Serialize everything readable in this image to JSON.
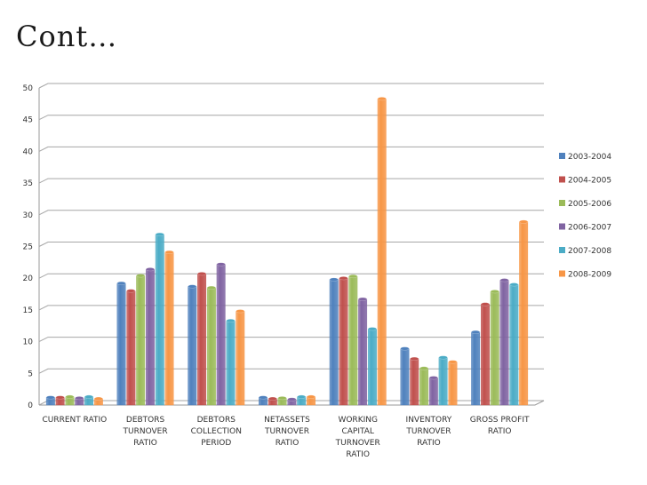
{
  "slide": {
    "title": "Cont…"
  },
  "chart_data": {
    "type": "bar",
    "title": "",
    "xlabel": "",
    "ylabel": "",
    "ylim": [
      0,
      50
    ],
    "yticks": [
      0,
      5,
      10,
      15,
      20,
      25,
      30,
      35,
      40,
      45,
      50
    ],
    "grid": true,
    "legend": "right",
    "categories": [
      [
        "CURRENT RATIO"
      ],
      [
        "DEBTORS",
        "TURNOVER",
        "RATIO"
      ],
      [
        "DEBTORS",
        "COLLECTION",
        "PERIOD"
      ],
      [
        "NETASSETS",
        "TURNOVER",
        "RATIO"
      ],
      [
        "WORKING",
        "CAPITAL",
        "TURNOVER",
        "RATIO"
      ],
      [
        "INVENTORY",
        "TURNOVER",
        "RATIO"
      ],
      [
        "GROSS PROFIT",
        "RATIO"
      ]
    ],
    "series": [
      {
        "name": "2003-2004",
        "color": "#4f81bd",
        "values": [
          1.2,
          19.2,
          18.7,
          1.2,
          19.8,
          8.9,
          11.5
        ]
      },
      {
        "name": "2004-2005",
        "color": "#c0504d",
        "values": [
          1.2,
          18.0,
          20.7,
          1.0,
          20.0,
          7.3,
          15.9
        ]
      },
      {
        "name": "2005-2006",
        "color": "#9bbb59",
        "values": [
          1.3,
          20.4,
          18.5,
          1.1,
          20.3,
          5.8,
          17.9
        ]
      },
      {
        "name": "2006-2007",
        "color": "#8064a2",
        "values": [
          1.1,
          21.4,
          22.2,
          0.9,
          16.7,
          4.3,
          19.7
        ]
      },
      {
        "name": "2007-2008",
        "color": "#4bacc6",
        "values": [
          1.3,
          26.9,
          13.3,
          1.3,
          12.0,
          7.5,
          19.0
        ]
      },
      {
        "name": "2008-2009",
        "color": "#f79646",
        "values": [
          1.0,
          24.1,
          14.8,
          1.3,
          48.3,
          6.8,
          28.9
        ]
      }
    ]
  }
}
